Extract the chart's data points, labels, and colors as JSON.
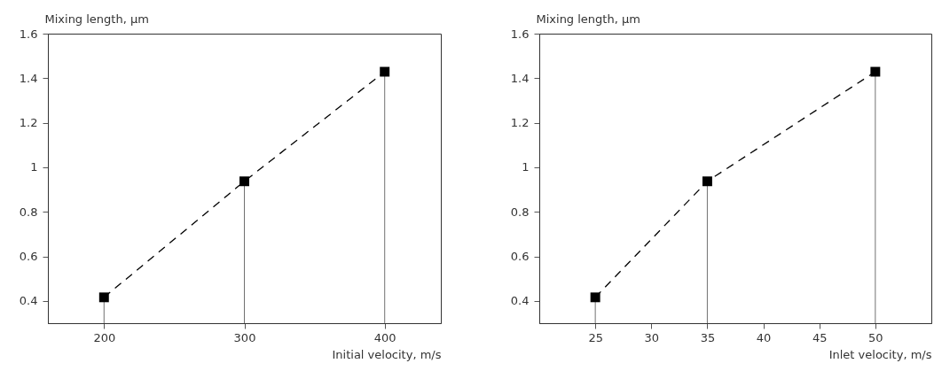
{
  "chart_data": [
    {
      "type": "line",
      "xlabel": "Initial velocity, m/s",
      "ylabel": "Mixing length, µm",
      "x": [
        200,
        300,
        400
      ],
      "xlim": [
        160,
        440
      ],
      "xticks": [
        200,
        300,
        400
      ],
      "ylim": [
        0.3,
        1.6
      ],
      "yticks": [
        0.4,
        0.6,
        0.8,
        1,
        1.2,
        1.4,
        1.6
      ],
      "series": [
        {
          "color": "#000000",
          "line_style": "dashed",
          "values": [
            0.416,
            0.937,
            1.429
          ]
        },
        {
          "type": "lollipop",
          "color": "#000000",
          "marker": "square",
          "values": [
            0.416,
            0.937,
            1.429
          ]
        }
      ]
    },
    {
      "type": "line",
      "xlabel": "Inlet velocity, m/s",
      "ylabel": "Mixing length, µm",
      "x": [
        25,
        35,
        50
      ],
      "xlim": [
        20,
        55
      ],
      "xticks": [
        25,
        30,
        35,
        40,
        45,
        50
      ],
      "ylim": [
        0.3,
        1.6
      ],
      "yticks": [
        0.4,
        0.6,
        0.8,
        1,
        1.2,
        1.4,
        1.6
      ],
      "series": [
        {
          "color": "#000000",
          "line_style": "dashed",
          "values": [
            0.416,
            0.937,
            1.429
          ]
        },
        {
          "type": "lollipop",
          "color": "#000000",
          "marker": "square",
          "values": [
            0.416,
            0.937,
            1.429
          ]
        }
      ]
    }
  ]
}
